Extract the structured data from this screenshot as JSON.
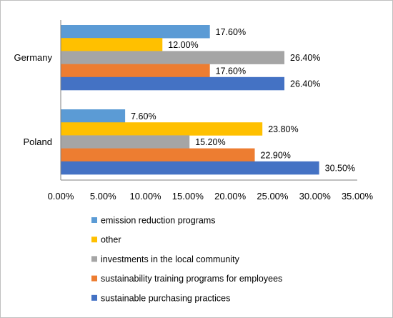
{
  "chart_data": {
    "type": "bar",
    "orientation": "horizontal",
    "title": "",
    "xlabel": "",
    "ylabel": "",
    "categories": [
      "Germany",
      "Poland"
    ],
    "xlim": [
      0,
      35
    ],
    "ticks": [
      "0.00%",
      "5.00%",
      "10.00%",
      "15.00%",
      "20.00%",
      "25.00%",
      "30.00%",
      "35.00%"
    ],
    "tick_values": [
      0,
      5,
      10,
      15,
      20,
      25,
      30,
      35
    ],
    "grid": false,
    "legend_position": "bottom",
    "series": [
      {
        "name": "emission reduction programs",
        "color": "#5b9bd5",
        "values": [
          17.6,
          7.6
        ],
        "labels": [
          "17.60%",
          "7.60%"
        ]
      },
      {
        "name": "other",
        "color": "#ffc000",
        "values": [
          12.0,
          23.8
        ],
        "labels": [
          "12.00%",
          "23.80%"
        ]
      },
      {
        "name": "investments in the local community",
        "color": "#a5a5a5",
        "values": [
          26.4,
          15.2
        ],
        "labels": [
          "26.40%",
          "15.20%"
        ]
      },
      {
        "name": "sustainability training programs for employees",
        "color": "#ed7d31",
        "values": [
          17.6,
          22.9
        ],
        "labels": [
          "17.60%",
          "22.90%"
        ]
      },
      {
        "name": "sustainable purchasing practices",
        "color": "#4472c4",
        "values": [
          26.4,
          30.5
        ],
        "labels": [
          "26.40%",
          "30.50%"
        ]
      }
    ]
  }
}
